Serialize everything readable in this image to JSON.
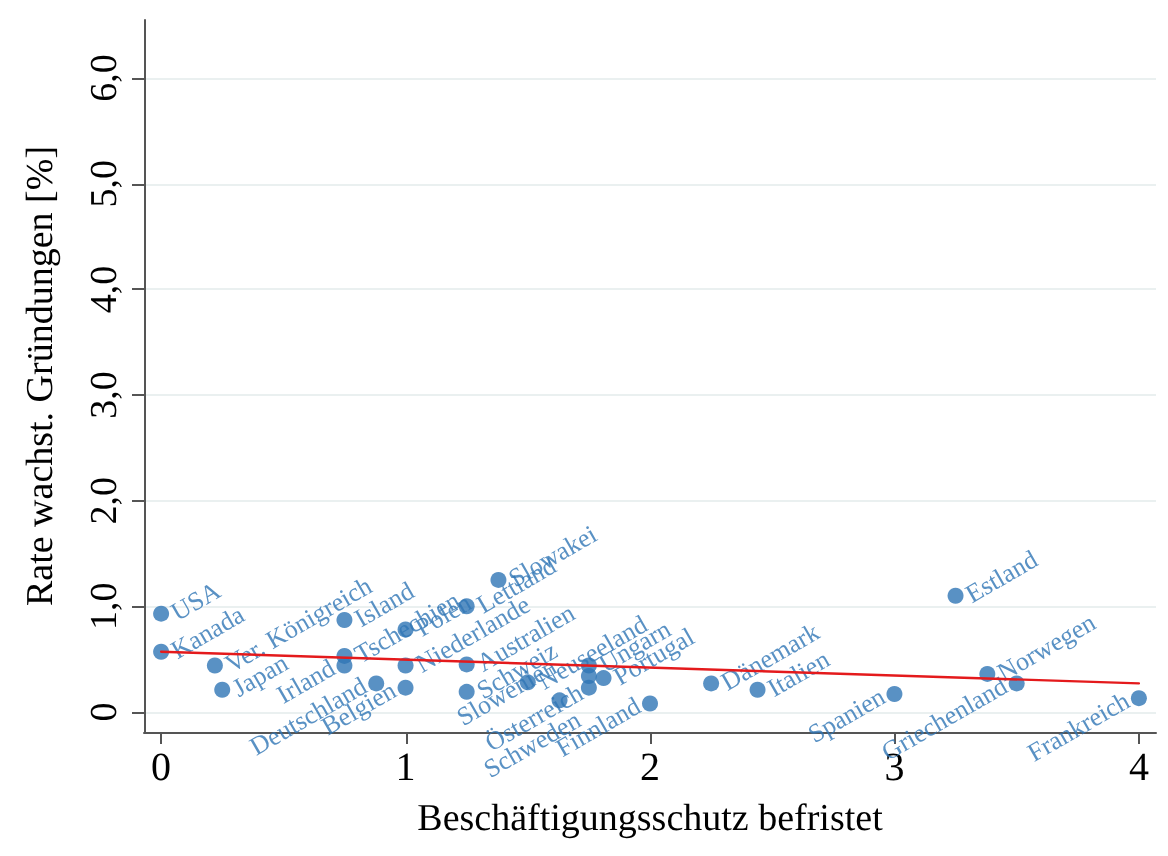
{
  "chart_data": {
    "type": "scatter",
    "xlabel": "Beschäftigungsschutz befristet",
    "ylabel": "Rate wachst. Gründungen [%]",
    "xlim": [
      -0.07,
      4.07
    ],
    "xticks": [
      0,
      1,
      2,
      3,
      4
    ],
    "ylim": [
      -0.19,
      6.55
    ],
    "yticks": [
      0,
      {
        "value": 1,
        "label": "1,0"
      },
      {
        "value": 2,
        "label": "2,0"
      },
      {
        "value": 3,
        "label": "3,0"
      },
      {
        "value": 4,
        "label": "4,0"
      },
      {
        "value": 5,
        "label": "5,0"
      },
      {
        "value": 6,
        "label": "6,0"
      }
    ],
    "grid": "y",
    "marker": "circle",
    "series": [
      {
        "color": "#2f76b5",
        "x": [
          0,
          0,
          0.22,
          0.25,
          0.75,
          0.75,
          0.75,
          0.88,
          1.0,
          1.0,
          1.0,
          1.25,
          1.38,
          1.25,
          1.25,
          1.5,
          1.63,
          1.75,
          1.75,
          1.75,
          1.81,
          2.0,
          2.25,
          2.44,
          3.0,
          3.25,
          3.38,
          3.5,
          4.0
        ],
        "values": [
          0.93,
          0.57,
          0.44,
          0.21,
          0.87,
          0.53,
          0.44,
          0.27,
          0.78,
          0.44,
          0.23,
          1.0,
          1.25,
          0.45,
          0.19,
          0.28,
          0.11,
          0.44,
          0.34,
          0.23,
          0.32,
          0.08,
          0.27,
          0.21,
          0.17,
          1.1,
          0.36,
          0.27,
          0.13
        ],
        "value_labels": [
          "USA",
          "Kanada",
          "Ver. Königreich",
          "Japan",
          "Island",
          "Tschechien",
          "Irland",
          "Deutschland",
          "Polen",
          "Niederlande",
          "Belgien",
          "Lettland",
          "Slowakei",
          "Australien",
          "Schweiz",
          "Neuseeland",
          "Schweden",
          "Ungarn",
          "Slowenien",
          "Österreich",
          "Portugal",
          "Finnland",
          "Dänemark",
          "Italien",
          "Spanien",
          "Estland",
          "Norwegen",
          "Griechenland",
          "Frankreich"
        ]
      },
      {
        "type": "line",
        "color": "#e41a1c",
        "marker": "none",
        "line_style": "solid",
        "x": [
          0,
          4
        ],
        "values": [
          0.57,
          0.27
        ]
      }
    ]
  }
}
